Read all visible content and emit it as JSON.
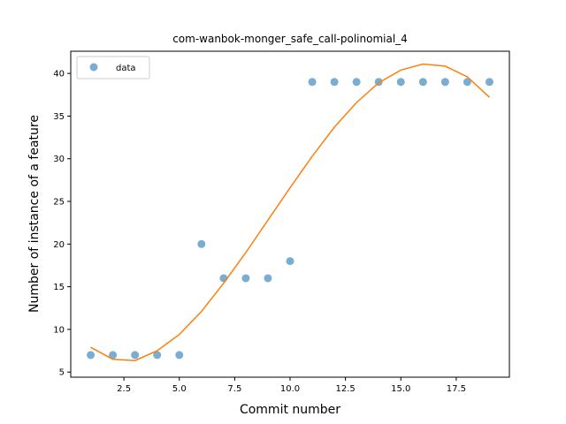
{
  "chart_data": {
    "type": "scatter",
    "title": "com-wanbok-monger_safe_call-polinomial_4",
    "xlabel": "Commit number",
    "ylabel": "Number of instance of a feature",
    "xlim": [
      0.1,
      19.9
    ],
    "ylim": [
      4.4,
      42.6
    ],
    "xticks": [
      2.5,
      5.0,
      7.5,
      10.0,
      12.5,
      15.0,
      17.5
    ],
    "xtick_labels": [
      "2.5",
      "5.0",
      "7.5",
      "10.0",
      "12.5",
      "15.0",
      "17.5"
    ],
    "yticks": [
      5,
      10,
      15,
      20,
      25,
      30,
      35,
      40
    ],
    "ytick_labels": [
      "5",
      "10",
      "15",
      "20",
      "25",
      "30",
      "35",
      "40"
    ],
    "grid": false,
    "legend": {
      "placement": "top-left",
      "entries": [
        "data"
      ]
    },
    "series": [
      {
        "name": "data",
        "kind": "scatter",
        "color": "#1f77b4",
        "x": [
          1,
          2,
          3,
          4,
          5,
          6,
          7,
          8,
          9,
          10,
          11,
          12,
          13,
          14,
          15,
          16,
          17,
          18,
          19
        ],
        "y": [
          7,
          7,
          7,
          7,
          7,
          20,
          16,
          16,
          16,
          18,
          39,
          39,
          39,
          39,
          39,
          39,
          39,
          39,
          39
        ]
      },
      {
        "kind": "line",
        "color": "#ff7f0e",
        "x": [
          1,
          2,
          3,
          4,
          5,
          6,
          7,
          8,
          9,
          10,
          11,
          12,
          13,
          14,
          15,
          16,
          17,
          18,
          19
        ],
        "y": [
          7.9,
          6.5,
          6.35,
          7.5,
          9.4,
          12.1,
          15.4,
          19.0,
          22.8,
          26.6,
          30.3,
          33.7,
          36.6,
          38.9,
          40.4,
          41.1,
          40.85,
          39.6,
          37.2
        ]
      }
    ]
  }
}
